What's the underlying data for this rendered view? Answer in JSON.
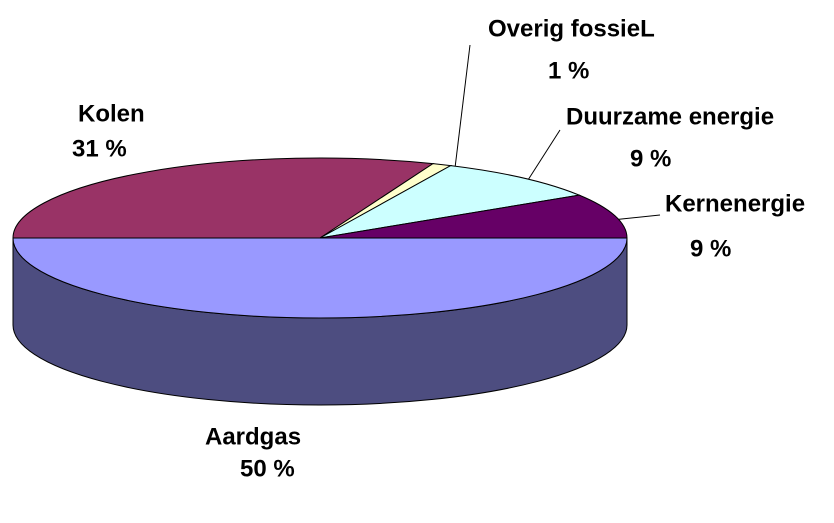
{
  "chart_data": {
    "type": "pie3d",
    "categories": [
      "Aardgas",
      "Kolen",
      "Overig fossieL",
      "Duurzame energie",
      "Kernenergie"
    ],
    "values": [
      50,
      31,
      1,
      9,
      9
    ],
    "value_labels": [
      "50 %",
      "31 %",
      "1 %",
      "9 %",
      "9 %"
    ],
    "colors": [
      "#9999ff",
      "#993366",
      "#ffffcc",
      "#ccffff",
      "#660066"
    ],
    "side_color": "#4d4d80"
  }
}
